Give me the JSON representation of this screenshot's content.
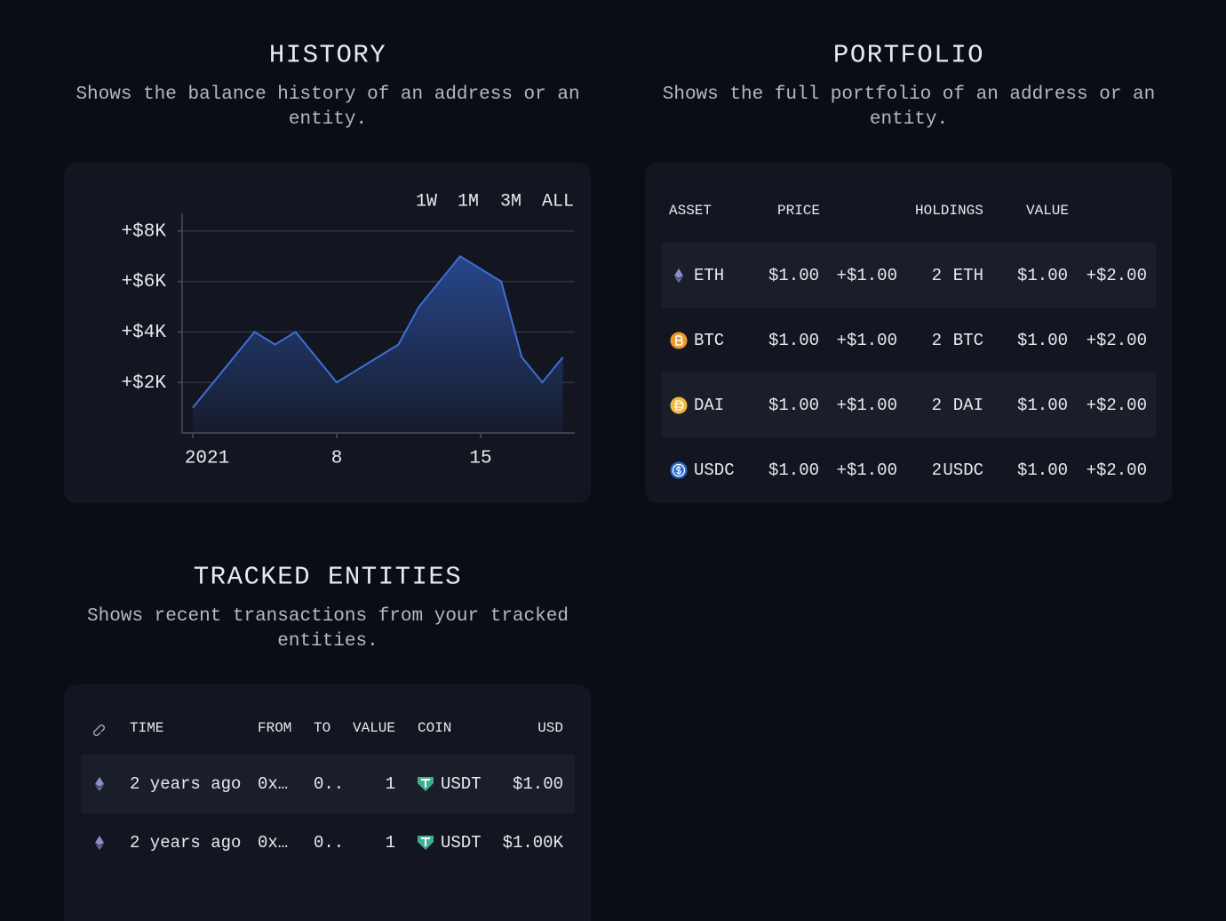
{
  "history": {
    "title": "HISTORY",
    "description": "Shows the balance history of an address or an entity.",
    "ranges": [
      "1W",
      "1M",
      "3M",
      "ALL"
    ]
  },
  "chart_data": {
    "type": "area",
    "x": [
      1,
      4,
      5,
      6,
      8,
      11,
      12,
      14,
      16,
      17,
      18,
      19
    ],
    "values": [
      1000,
      4000,
      3500,
      4000,
      2000,
      3500,
      5000,
      7000,
      6000,
      3000,
      2000,
      3000
    ],
    "xlim": [
      0.48,
      19.58
    ],
    "xticks": [
      {
        "value": 1,
        "label": "2021"
      },
      8,
      15
    ],
    "ylim": [
      0,
      8700
    ],
    "yticks": [
      {
        "value": 2000,
        "label": "+$2K"
      },
      {
        "value": 4000,
        "label": "+$4K"
      },
      {
        "value": 6000,
        "label": "+$6K"
      },
      {
        "value": 8000,
        "label": "+$8K"
      }
    ],
    "color": "#3d6fd6",
    "grid": true
  },
  "portfolio": {
    "title": "PORTFOLIO",
    "description": "Shows the full portfolio of an address or an entity.",
    "headers": [
      "ASSET",
      "PRICE",
      "HOLDINGS",
      "VALUE"
    ],
    "rows": [
      {
        "asset": "ETH",
        "price": "$1.00",
        "price_change": "+$1.00",
        "holdings": 2,
        "symbol": "ETH",
        "value": "$1.00",
        "value_change": "+$2.00"
      },
      {
        "asset": "BTC",
        "price": "$1.00",
        "price_change": "+$1.00",
        "holdings": 2,
        "symbol": "BTC",
        "value": "$1.00",
        "value_change": "+$2.00"
      },
      {
        "asset": "DAI",
        "price": "$1.00",
        "price_change": "+$1.00",
        "holdings": 2,
        "symbol": "DAI",
        "value": "$1.00",
        "value_change": "+$2.00"
      },
      {
        "asset": "USDC",
        "price": "$1.00",
        "price_change": "+$1.00",
        "holdings": 2,
        "symbol": "USDC",
        "value": "$1.00",
        "value_change": "+$2.00"
      }
    ]
  },
  "tracked": {
    "title": "TRACKED ENTITIES",
    "description": "Shows recent transactions from your tracked entities.",
    "headers": [
      "TIME",
      "FROM",
      "TO",
      "VALUE",
      "COIN",
      "USD"
    ],
    "rows": [
      {
        "time": "2 years ago",
        "from": "0x…",
        "to": "0..",
        "value": 1,
        "coin": "USDT",
        "usd": "$1.00"
      },
      {
        "time": "2 years ago",
        "from": "0x…",
        "to": "0..",
        "value": 1,
        "coin": "USDT",
        "usd": "$1.00K"
      }
    ]
  }
}
